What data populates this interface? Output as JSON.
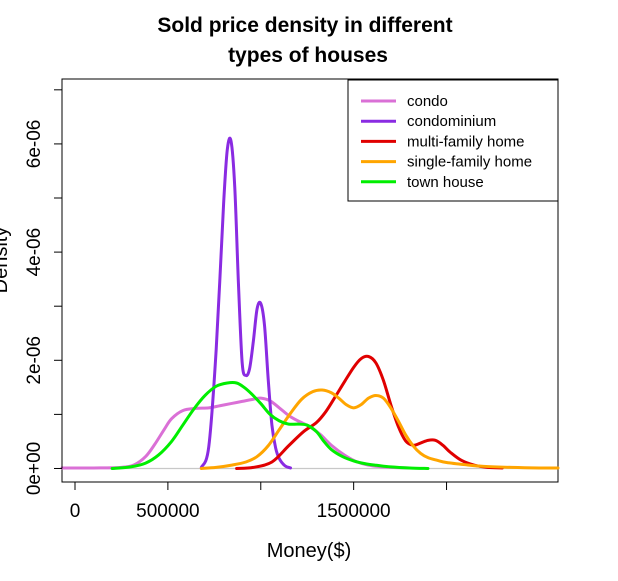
{
  "chart_data": {
    "type": "line",
    "title": [
      "Sold price density in different",
      "types of houses"
    ],
    "xlabel": "Money($)",
    "ylabel": "Density",
    "xlim": [
      -70000,
      2600000
    ],
    "ylim": [
      -2.5e-07,
      7.2e-06
    ],
    "x_ticks": [
      0,
      500000,
      1000000,
      1500000,
      2000000
    ],
    "x_tick_labels": [
      "0",
      "500000",
      "",
      "1500000",
      ""
    ],
    "y_ticks": [
      0,
      1e-06,
      2e-06,
      3e-06,
      4e-06,
      5e-06,
      6e-06,
      7e-06
    ],
    "y_tick_labels": [
      "0e+00",
      "",
      "2e-06",
      "",
      "4e-06",
      "",
      "6e-06",
      ""
    ],
    "grid": false,
    "legend_position": "top-right",
    "baseline": {
      "x": [
        -70000,
        2600000
      ],
      "y": [
        0,
        0
      ],
      "color": "#c8c8c8"
    },
    "series": [
      {
        "name": "condo",
        "color": "#da70d6",
        "x": [
          -70000,
          100000,
          250000,
          320000,
          380000,
          430000,
          480000,
          520000,
          580000,
          650000,
          720000,
          780000,
          840000,
          900000,
          960000,
          1000000,
          1050000,
          1100000,
          1150000,
          1200000,
          1260000,
          1320000,
          1380000,
          1450000,
          1520000,
          1600000,
          1700000,
          1800000
        ],
        "y": [
          1e-08,
          1e-08,
          2e-08,
          7e-08,
          2.2e-07,
          4.5e-07,
          7.2e-07,
          9.2e-07,
          1.07e-06,
          1.11e-06,
          1.12e-06,
          1.16e-06,
          1.2e-06,
          1.24e-06,
          1.28e-06,
          1.3e-06,
          1.25e-06,
          1.12e-06,
          9.8e-07,
          8.8e-07,
          7.8e-07,
          6.3e-07,
          4.3e-07,
          2.5e-07,
          1.2e-07,
          5e-08,
          2e-08,
          1e-08
        ]
      },
      {
        "name": "condominium",
        "color": "#8a2be2",
        "x": [
          680000,
          720000,
          760000,
          800000,
          820000,
          840000,
          860000,
          880000,
          900000,
          920000,
          940000,
          960000,
          980000,
          1000000,
          1020000,
          1040000,
          1060000,
          1080000,
          1100000,
          1130000,
          1160000
        ],
        "y": [
          2e-08,
          4e-07,
          2.2e-06,
          4.9e-06,
          5.9e-06,
          6.05e-06,
          5.2e-06,
          3.4e-06,
          1.95e-06,
          1.72e-06,
          1.85e-06,
          2.35e-06,
          2.95e-06,
          3.05e-06,
          2.65e-06,
          1.65e-06,
          8e-07,
          3.8e-07,
          1.8e-07,
          5e-08,
          1e-08
        ]
      },
      {
        "name": "multi-family home",
        "color": "#e00000",
        "x": [
          870000,
          960000,
          1060000,
          1150000,
          1230000,
          1300000,
          1350000,
          1400000,
          1450000,
          1500000,
          1540000,
          1580000,
          1620000,
          1660000,
          1700000,
          1740000,
          1780000,
          1820000,
          1860000,
          1900000,
          1940000,
          1980000,
          2020000,
          2080000,
          2150000,
          2220000,
          2300000
        ],
        "y": [
          0.0,
          2e-08,
          1.2e-07,
          4.2e-07,
          6.8e-07,
          8.5e-07,
          1.05e-06,
          1.32e-06,
          1.6e-06,
          1.87e-06,
          2.03e-06,
          2.07e-06,
          1.95e-06,
          1.63e-06,
          1.18e-06,
          7.8e-07,
          5.1e-07,
          4.3e-07,
          4.7e-07,
          5.2e-07,
          5.2e-07,
          4.3e-07,
          3e-07,
          1.5e-07,
          6e-08,
          2e-08,
          1e-08
        ]
      },
      {
        "name": "single-family home",
        "color": "#ffa500",
        "x": [
          680000,
          760000,
          840000,
          920000,
          980000,
          1040000,
          1100000,
          1160000,
          1220000,
          1280000,
          1330000,
          1380000,
          1420000,
          1460000,
          1500000,
          1540000,
          1580000,
          1620000,
          1660000,
          1700000,
          1740000,
          1780000,
          1820000,
          1860000,
          1900000,
          1950000,
          2000000,
          2100000,
          2200000,
          2350000,
          2500000,
          2600000
        ],
        "y": [
          0.0,
          2e-08,
          6e-08,
          1.2e-07,
          2.2e-07,
          4.2e-07,
          7.2e-07,
          1.02e-06,
          1.28e-06,
          1.42e-06,
          1.45e-06,
          1.4e-06,
          1.3e-06,
          1.18e-06,
          1.12e-06,
          1.18e-06,
          1.3e-06,
          1.35e-06,
          1.3e-06,
          1.12e-06,
          8.8e-07,
          6.2e-07,
          4.2e-07,
          2.8e-07,
          2e-07,
          1.5e-07,
          1.1e-07,
          7e-08,
          4e-08,
          2e-08,
          1e-08,
          1e-08
        ]
      },
      {
        "name": "town house",
        "color": "#00ee00",
        "x": [
          200000,
          300000,
          380000,
          450000,
          520000,
          580000,
          640000,
          700000,
          760000,
          820000,
          870000,
          910000,
          950000,
          1000000,
          1050000,
          1100000,
          1150000,
          1200000,
          1250000,
          1300000,
          1340000,
          1380000,
          1440000,
          1500000,
          1560000,
          1620000,
          1700000,
          1800000,
          1900000
        ],
        "y": [
          0.0,
          3e-08,
          1e-07,
          2.5e-07,
          5e-07,
          8e-07,
          1.1e-06,
          1.35e-06,
          1.52e-06,
          1.58e-06,
          1.58e-06,
          1.5e-06,
          1.38e-06,
          1.2e-06,
          1e-06,
          8.8e-07,
          8.2e-07,
          8.2e-07,
          8e-07,
          6.8e-07,
          5e-07,
          3.5e-07,
          2.2e-07,
          1.4e-07,
          9e-08,
          6e-08,
          3e-08,
          1e-08,
          0.0
        ]
      }
    ]
  }
}
